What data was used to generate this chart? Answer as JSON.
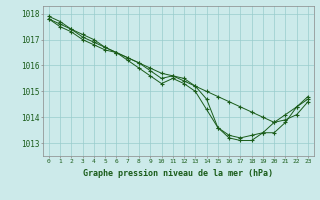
{
  "title": "Graphe pression niveau de la mer (hPa)",
  "bg_color": "#cceaea",
  "grid_color": "#99cccc",
  "line_color": "#1a5c1a",
  "marker_color": "#1a5c1a",
  "xlim": [
    -0.5,
    23.5
  ],
  "ylim": [
    1012.5,
    1018.3
  ],
  "yticks": [
    1013,
    1014,
    1015,
    1016,
    1017,
    1018
  ],
  "xticks": [
    0,
    1,
    2,
    3,
    4,
    5,
    6,
    7,
    8,
    9,
    10,
    11,
    12,
    13,
    14,
    15,
    16,
    17,
    18,
    19,
    20,
    21,
    22,
    23
  ],
  "series": [
    [
      1017.9,
      1017.7,
      1017.4,
      1017.1,
      1016.9,
      1016.7,
      1016.5,
      1016.3,
      1016.1,
      1015.9,
      1015.7,
      1015.6,
      1015.4,
      1015.2,
      1015.0,
      1014.8,
      1014.6,
      1014.4,
      1014.2,
      1014.0,
      1013.8,
      1013.9,
      1014.1,
      1014.6
    ],
    [
      1017.8,
      1017.6,
      1017.4,
      1017.2,
      1017.0,
      1016.7,
      1016.5,
      1016.2,
      1015.9,
      1015.6,
      1015.3,
      1015.5,
      1015.3,
      1015.0,
      1014.3,
      1013.6,
      1013.2,
      1013.1,
      1013.1,
      1013.4,
      1013.8,
      1014.1,
      1014.4,
      1014.7
    ],
    [
      1017.8,
      1017.5,
      1017.3,
      1017.0,
      1016.8,
      1016.6,
      1016.5,
      1016.3,
      1016.1,
      1015.8,
      1015.5,
      1015.6,
      1015.5,
      1015.2,
      1014.7,
      1013.6,
      1013.3,
      1013.2,
      1013.3,
      1013.4,
      1013.4,
      1013.8,
      1014.4,
      1014.8
    ]
  ]
}
